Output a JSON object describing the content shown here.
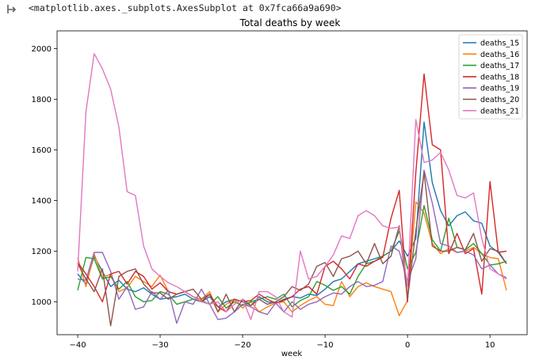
{
  "output": {
    "repr_text": "<matplotlib.axes._subplots.AxesSubplot at 0x7fca66a9a690>",
    "icon": "output-arrow-icon"
  },
  "chart_data": {
    "type": "line",
    "title": "Total deaths by week",
    "xlabel": "week",
    "ylabel": "",
    "xlim": [
      -42.5,
      14.5
    ],
    "ylim": [
      870,
      2070
    ],
    "xticks": [
      -40,
      -30,
      -20,
      -10,
      0,
      10
    ],
    "yticks": [
      1000,
      1200,
      1400,
      1600,
      1800,
      2000
    ],
    "grid": false,
    "legend_position": "top-right",
    "x": [
      -40,
      -39,
      -38,
      -37,
      -36,
      -35,
      -34,
      -33,
      -32,
      -31,
      -30,
      -29,
      -28,
      -27,
      -26,
      -25,
      -24,
      -23,
      -22,
      -21,
      -20,
      -19,
      -18,
      -17,
      -16,
      -15,
      -14,
      -13,
      -12,
      -11,
      -10,
      -9,
      -8,
      -7,
      -6,
      -5,
      -4,
      -3,
      -2,
      -1,
      0,
      1,
      2,
      3,
      4,
      5,
      6,
      7,
      8,
      9,
      10,
      11,
      12
    ],
    "series": [
      {
        "name": "deaths_15",
        "color": "#1f77b4",
        "values": [
          1110,
          1070,
          1180,
          1120,
          1060,
          1085,
          1050,
          1040,
          1055,
          1030,
          1010,
          1015,
          1020,
          1030,
          1010,
          1000,
          1020,
          980,
          1000,
          1010,
          1000,
          985,
          1020,
          1000,
          995,
          1010,
          1020,
          1015,
          1030,
          1025,
          1050,
          1080,
          1090,
          1120,
          1150,
          1160,
          1170,
          1180,
          1200,
          1240,
          1180,
          1250,
          1710,
          1470,
          1360,
          1300,
          1340,
          1355,
          1320,
          1310,
          1220,
          1195,
          1150
        ]
      },
      {
        "name": "deaths_16",
        "color": "#ff7f0e",
        "values": [
          1175,
          1060,
          1190,
          1095,
          1110,
          1040,
          1055,
          1100,
          1080,
          1060,
          1105,
          1040,
          1030,
          1040,
          1020,
          1010,
          1040,
          960,
          990,
          1010,
          975,
          1000,
          960,
          980,
          995,
          1000,
          960,
          985,
          1005,
          1020,
          990,
          985,
          1080,
          1020,
          1060,
          1075,
          1060,
          1050,
          1040,
          945,
          1005,
          1395,
          1350,
          1230,
          1190,
          1210,
          1195,
          1200,
          1215,
          1190,
          1175,
          1170,
          1045
        ]
      },
      {
        "name": "deaths_17",
        "color": "#2ca02c",
        "values": [
          1045,
          1175,
          1170,
          1090,
          1100,
          1050,
          1080,
          1020,
          1000,
          1005,
          1040,
          1030,
          990,
          1000,
          1010,
          1005,
          990,
          1020,
          975,
          1000,
          985,
          1000,
          1010,
          1020,
          1010,
          1030,
          980,
          1005,
          1020,
          1080,
          1065,
          1045,
          1060,
          1030,
          1100,
          1150,
          1160,
          1180,
          1200,
          1280,
          1130,
          1195,
          1380,
          1245,
          1200,
          1330,
          1215,
          1205,
          1230,
          1190,
          1145,
          1150,
          1160
        ]
      },
      {
        "name": "deaths_18",
        "color": "#d62728",
        "values": [
          1155,
          1110,
          1060,
          1000,
          1110,
          1120,
          1070,
          1120,
          1100,
          1050,
          1075,
          1040,
          1030,
          1040,
          1020,
          1000,
          1030,
          980,
          960,
          1010,
          1000,
          1005,
          1030,
          1010,
          995,
          1005,
          1020,
          1050,
          1060,
          1030,
          1140,
          1160,
          1130,
          1090,
          1150,
          1140,
          1160,
          1175,
          1330,
          1440,
          1000,
          1510,
          1900,
          1620,
          1600,
          1190,
          1270,
          1190,
          1210,
          1030,
          1475,
          1195,
          1200
        ]
      },
      {
        "name": "deaths_19",
        "color": "#9467bd",
        "values": [
          1090,
          1085,
          1195,
          1195,
          1120,
          1010,
          1060,
          970,
          980,
          1040,
          1010,
          1045,
          915,
          1000,
          990,
          1050,
          990,
          930,
          935,
          960,
          990,
          980,
          960,
          950,
          995,
          960,
          1000,
          970,
          990,
          1000,
          1020,
          1035,
          1030,
          1060,
          1080,
          1060,
          1065,
          1080,
          1220,
          1200,
          1080,
          1170,
          1520,
          1390,
          1230,
          1220,
          1195,
          1200,
          1185,
          1130,
          1145,
          1110,
          1095
        ]
      },
      {
        "name": "deaths_20",
        "color": "#8c564b",
        "values": [
          1150,
          1090,
          1040,
          1130,
          905,
          1100,
          1120,
          1130,
          1070,
          1035,
          1035,
          1010,
          1030,
          1040,
          1050,
          1010,
          1030,
          960,
          1030,
          960,
          1010,
          985,
          1010,
          990,
          1000,
          1020,
          1060,
          1045,
          1070,
          1140,
          1155,
          1100,
          1170,
          1180,
          1200,
          1150,
          1230,
          1150,
          1180,
          1300,
          1010,
          1280,
          1510,
          1220,
          1200,
          1200,
          1215,
          1205,
          1270,
          1160,
          1210,
          1200,
          1150
        ]
      },
      {
        "name": "deaths_21",
        "color": "#e377c2",
        "values": [
          1120,
          1750,
          1980,
          1920,
          1840,
          1690,
          1435,
          1420,
          1220,
          1130,
          1100,
          1075,
          1060,
          1040,
          1020,
          1000,
          990,
          1000,
          960,
          990,
          1010,
          930,
          1040,
          1040,
          1020,
          960,
          940,
          1200,
          1090,
          1100,
          1140,
          1185,
          1260,
          1250,
          1340,
          1360,
          1340,
          1300,
          1290,
          1295,
          1060,
          1720,
          1550,
          1560,
          1590,
          1520,
          1420,
          1410,
          1430,
          1250,
          1130,
          1110,
          1090
        ]
      }
    ]
  }
}
